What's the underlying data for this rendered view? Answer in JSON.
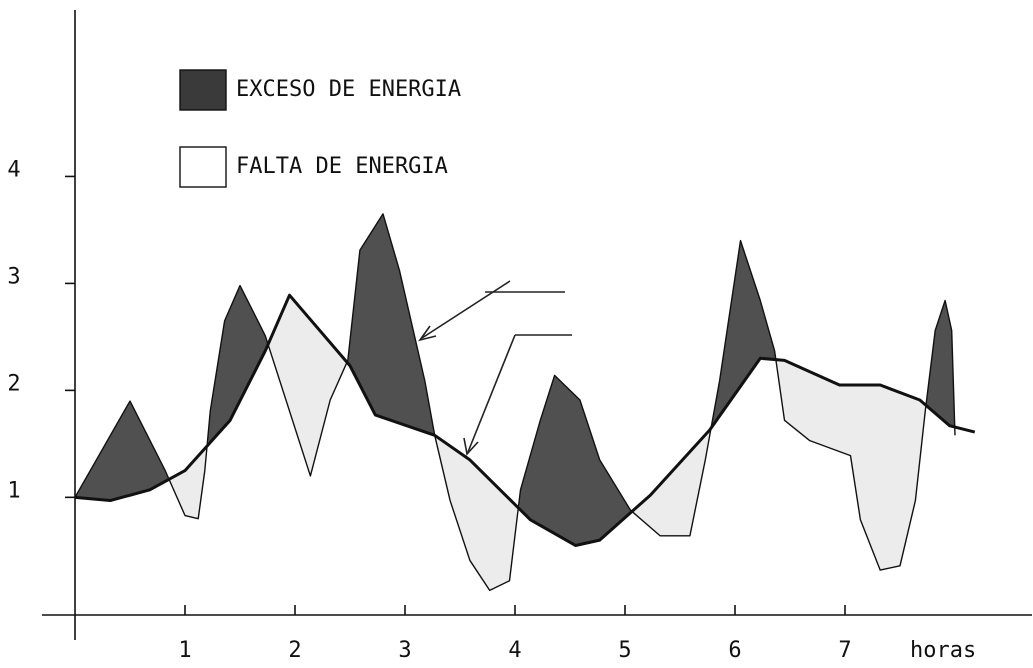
{
  "chart_data": {
    "type": "line",
    "xlabel": "horas",
    "xlim": [
      -0.3,
      8.7
    ],
    "ylim": [
      -0.1,
      5.5
    ],
    "xticks": [
      1,
      2,
      3,
      4,
      5,
      6,
      7
    ],
    "yticks": [
      1,
      2,
      3,
      4
    ],
    "legend": [
      {
        "label": "EXCESO DE ENERGIA",
        "color": "#3a3a3a"
      },
      {
        "label": "FALTA DE ENERGIA",
        "color": "#ffffff"
      }
    ],
    "fill_colors": {
      "above": "#505050",
      "below": "#ececec"
    },
    "series": [
      {
        "color": "#111111",
        "x": [
          0,
          0.32,
          0.68,
          1.0,
          1.41,
          1.73,
          1.95,
          2.5,
          2.73,
          3.27,
          3.59,
          4.14,
          4.55,
          4.77,
          5.23,
          5.77,
          6.23,
          6.45,
          6.95,
          7.32,
          7.68,
          7.95,
          8.18
        ],
        "values": [
          1.0,
          0.97,
          1.07,
          1.25,
          1.72,
          2.37,
          2.89,
          2.23,
          1.77,
          1.58,
          1.35,
          0.79,
          0.55,
          0.6,
          1.02,
          1.63,
          2.3,
          2.28,
          2.05,
          2.05,
          1.91,
          1.67,
          1.61
        ]
      },
      {
        "color": "#111111",
        "x": [
          0,
          0.5,
          0.82,
          1.0,
          1.12,
          1.18,
          1.23,
          1.36,
          1.5,
          1.73,
          2.14,
          2.32,
          2.48,
          2.59,
          2.8,
          2.95,
          3.18,
          3.27,
          3.41,
          3.59,
          3.77,
          3.95,
          4.05,
          4.23,
          4.36,
          4.59,
          4.77,
          5.05,
          5.32,
          5.59,
          5.73,
          5.86,
          6.05,
          6.23,
          6.36,
          6.45,
          6.68,
          7.05,
          7.14,
          7.32,
          7.5,
          7.64,
          7.73,
          7.82,
          7.91,
          7.97,
          8.0
        ],
        "values": [
          1.0,
          1.9,
          1.25,
          0.83,
          0.8,
          1.25,
          1.81,
          2.65,
          2.98,
          2.51,
          1.2,
          1.91,
          2.28,
          3.31,
          3.65,
          3.12,
          2.09,
          1.58,
          0.97,
          0.41,
          0.13,
          0.22,
          1.07,
          1.72,
          2.14,
          1.91,
          1.35,
          0.88,
          0.64,
          0.64,
          1.35,
          2.09,
          3.4,
          2.84,
          2.37,
          1.72,
          1.53,
          1.39,
          0.79,
          0.32,
          0.36,
          0.97,
          1.81,
          2.56,
          2.84,
          2.56,
          1.58
        ]
      }
    ]
  }
}
